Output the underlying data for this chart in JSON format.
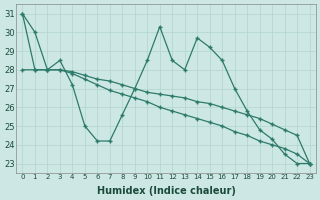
{
  "xlabel": "Humidex (Indice chaleur)",
  "background_color": "#cde8e4",
  "grid_color": "#b0d4cc",
  "line_color": "#2d7a6a",
  "ylim": [
    22.5,
    31.5
  ],
  "xlim": [
    -0.5,
    23.5
  ],
  "yticks": [
    23,
    24,
    25,
    26,
    27,
    28,
    29,
    30,
    31
  ],
  "x_ticks": [
    0,
    1,
    2,
    3,
    4,
    5,
    6,
    7,
    8,
    9,
    10,
    11,
    12,
    13,
    14,
    15,
    16,
    17,
    18,
    19,
    20,
    21,
    22,
    23
  ],
  "series": [
    [
      31.0,
      30.0,
      28.0,
      28.5,
      27.2,
      25.0,
      24.2,
      24.2,
      25.6,
      27.0,
      28.5,
      30.3,
      28.5,
      28.0,
      29.7,
      29.2,
      28.5,
      27.0,
      25.8,
      24.8,
      24.3,
      23.5,
      23.0,
      23.0
    ],
    [
      31.0,
      28.0,
      28.0,
      28.0,
      27.8,
      27.5,
      27.2,
      26.9,
      26.7,
      26.5,
      26.3,
      26.0,
      25.8,
      25.6,
      25.4,
      25.2,
      25.0,
      24.7,
      24.5,
      24.2,
      24.0,
      23.8,
      23.5,
      23.0
    ],
    [
      28.0,
      28.0,
      28.0,
      28.0,
      27.9,
      27.7,
      27.5,
      27.4,
      27.2,
      27.0,
      26.8,
      26.7,
      26.6,
      26.5,
      26.3,
      26.2,
      26.0,
      25.8,
      25.6,
      25.4,
      25.1,
      24.8,
      24.5,
      23.0
    ]
  ]
}
